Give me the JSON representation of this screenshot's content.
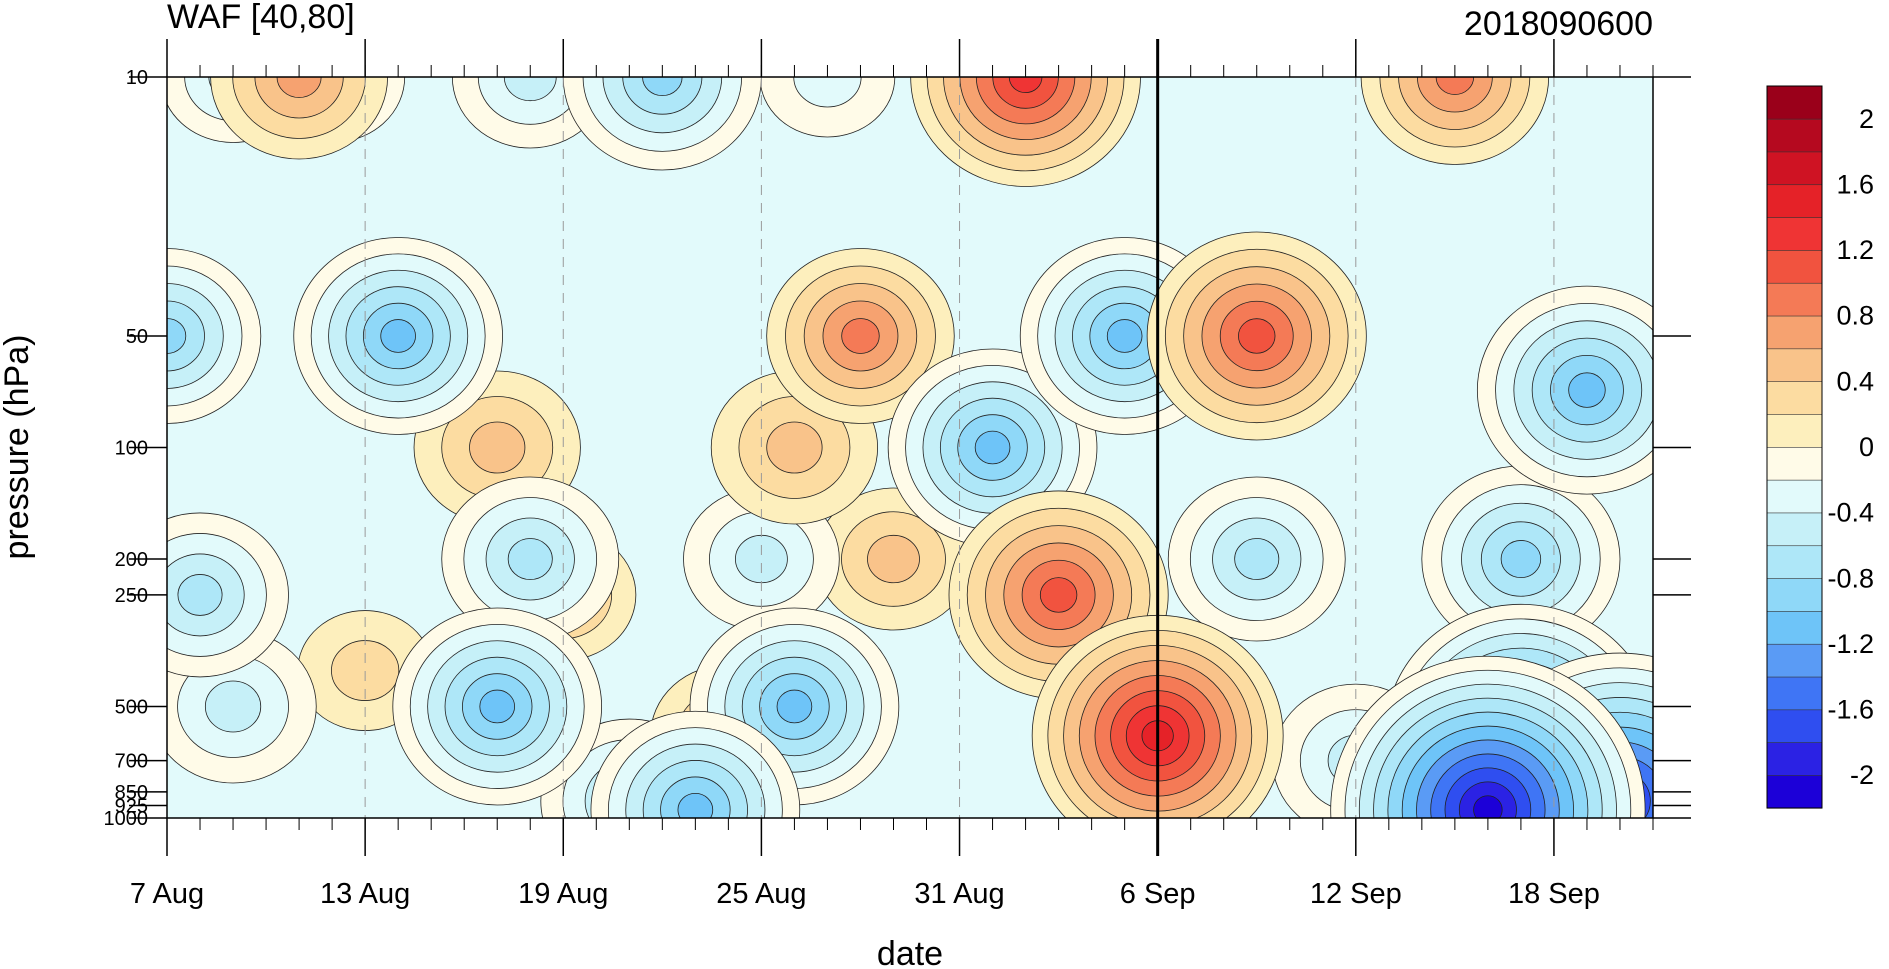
{
  "chart_data": {
    "type": "heatmap",
    "title": "WAF [40,80]",
    "subtitle": "2018090600",
    "xlabel": "date",
    "ylabel": "pressure (hPa)",
    "x_ticks": [
      "7 Aug",
      "13 Aug",
      "19 Aug",
      "25 Aug",
      "31 Aug",
      "6 Sep",
      "12 Sep",
      "18 Sep"
    ],
    "y_ticks": [
      "10",
      "50",
      "100",
      "200",
      "250",
      "500",
      "700",
      "850",
      "925",
      "1000"
    ],
    "y_scale": "log",
    "ylim": [
      1000,
      10
    ],
    "x_range": [
      "2018-08-07",
      "2018-09-21"
    ],
    "reference_line": "2018-09-06",
    "colorbar": {
      "labels": [
        "2",
        "1.6",
        "1.2",
        "0.8",
        "0.4",
        "0",
        "-0.4",
        "-0.8",
        "-1.2",
        "-1.6",
        "-2"
      ],
      "levels": [
        -2.2,
        -2.0,
        -1.8,
        -1.6,
        -1.4,
        -1.2,
        -1.0,
        -0.8,
        -0.6,
        -0.4,
        -0.2,
        0.0,
        0.2,
        0.4,
        0.6,
        0.8,
        1.0,
        1.2,
        1.4,
        1.6,
        1.8,
        2.0,
        2.2
      ],
      "colors": [
        "#1c00d8",
        "#2b22e4",
        "#2f4ef0",
        "#3f75f5",
        "#5a9bf5",
        "#6ec4f8",
        "#8fd8f8",
        "#aee7f8",
        "#c6f0f8",
        "#e2fafb",
        "#fffbe8",
        "#fdefbd",
        "#fcdca1",
        "#f9c38a",
        "#f6a270",
        "#f47a56",
        "#f1533f",
        "#ef3434",
        "#e52228",
        "#cf1323",
        "#b5091f",
        "#9a001a"
      ]
    },
    "features": [
      {
        "date": "2018-09-02",
        "pressure": 10,
        "value": 1.3
      },
      {
        "date": "2018-09-03",
        "pressure": 250,
        "value": 1.2
      },
      {
        "date": "2018-09-06",
        "pressure": 600,
        "value": 1.5
      },
      {
        "date": "2018-09-09",
        "pressure": 50,
        "value": 1.2
      },
      {
        "date": "2018-08-28",
        "pressure": 50,
        "value": 0.9
      },
      {
        "date": "2018-09-15",
        "pressure": 10,
        "value": 0.9
      },
      {
        "date": "2018-08-11",
        "pressure": 10,
        "value": 0.8
      },
      {
        "date": "2018-08-17",
        "pressure": 100,
        "value": 0.7
      },
      {
        "date": "2018-08-24",
        "pressure": 600,
        "value": 0.6
      },
      {
        "date": "2018-08-29",
        "pressure": 200,
        "value": 0.6
      },
      {
        "date": "2018-08-19",
        "pressure": 250,
        "value": 0.5
      },
      {
        "date": "2018-08-26",
        "pressure": 100,
        "value": 0.7
      },
      {
        "date": "2018-08-13",
        "pressure": 400,
        "value": 0.4
      },
      {
        "date": "2018-09-16",
        "pressure": 950,
        "value": -2.1
      },
      {
        "date": "2018-09-20",
        "pressure": 900,
        "value": -2.0
      },
      {
        "date": "2018-09-17",
        "pressure": 600,
        "value": -1.7
      },
      {
        "date": "2018-09-19",
        "pressure": 70,
        "value": -1.2
      },
      {
        "date": "2018-09-17",
        "pressure": 200,
        "value": -1.0
      },
      {
        "date": "2018-08-17",
        "pressure": 500,
        "value": -1.1
      },
      {
        "date": "2018-08-14",
        "pressure": 50,
        "value": -1.1
      },
      {
        "date": "2018-08-22",
        "pressure": 10,
        "value": -1.0
      },
      {
        "date": "2018-09-01",
        "pressure": 100,
        "value": -1.1
      },
      {
        "date": "2018-09-05",
        "pressure": 50,
        "value": -1.1
      },
      {
        "date": "2018-08-26",
        "pressure": 500,
        "value": -1.1
      },
      {
        "date": "2018-08-07",
        "pressure": 50,
        "value": -0.9
      },
      {
        "date": "2018-08-08",
        "pressure": 250,
        "value": -0.8
      },
      {
        "date": "2018-08-09",
        "pressure": 500,
        "value": -0.7
      },
      {
        "date": "2018-09-09",
        "pressure": 200,
        "value": -0.8
      },
      {
        "date": "2018-08-23",
        "pressure": 950,
        "value": -1.1
      },
      {
        "date": "2018-08-18",
        "pressure": 200,
        "value": -0.8
      },
      {
        "date": "2018-08-25",
        "pressure": 200,
        "value": -0.6
      },
      {
        "date": "2018-08-27",
        "pressure": 10,
        "value": -0.4
      },
      {
        "date": "2018-08-12",
        "pressure": 10,
        "value": -0.5
      },
      {
        "date": "2018-08-18",
        "pressure": 10,
        "value": -0.6
      },
      {
        "date": "2018-08-09",
        "pressure": 10,
        "value": -0.5
      },
      {
        "date": "2018-09-12",
        "pressure": 700,
        "value": -0.7
      },
      {
        "date": "2018-08-21",
        "pressure": 900,
        "value": -0.8
      }
    ]
  }
}
